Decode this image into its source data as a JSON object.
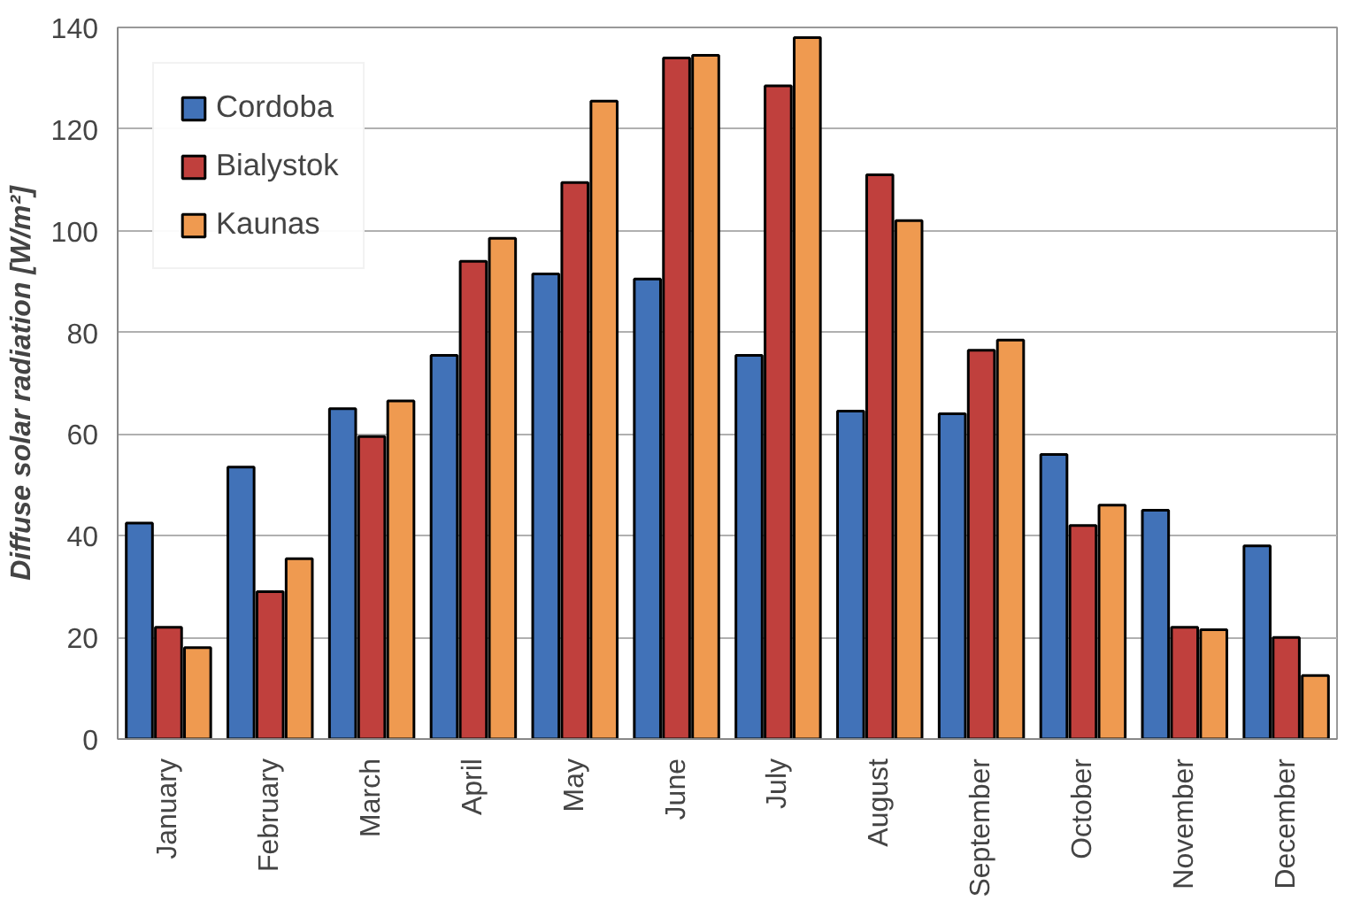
{
  "chart_data": {
    "type": "bar",
    "ylabel": "Diffuse solar radiation [W/m²]",
    "categories": [
      "January",
      "February",
      "March",
      "April",
      "May",
      "June",
      "July",
      "August",
      "September",
      "October",
      "November",
      "December"
    ],
    "series": [
      {
        "name": "Cordoba",
        "color": "#4172b8",
        "values": [
          42.5,
          53.5,
          65,
          75.5,
          91.5,
          90.5,
          75.5,
          64.5,
          64,
          56,
          45,
          38
        ]
      },
      {
        "name": "Bialystok",
        "color": "#c0403d",
        "values": [
          22,
          29,
          59.5,
          94,
          109.5,
          134,
          128.5,
          111,
          76.5,
          42,
          22,
          20
        ]
      },
      {
        "name": "Kaunas",
        "color": "#ef9a50",
        "values": [
          18,
          35.5,
          66.5,
          98.5,
          125.5,
          134.5,
          138,
          102,
          78.5,
          46,
          21.5,
          12.5
        ]
      }
    ],
    "ylim": [
      0,
      140
    ],
    "yticks": [
      0,
      20,
      40,
      60,
      80,
      100,
      120,
      140
    ],
    "grid": "y",
    "legend": "top left"
  }
}
